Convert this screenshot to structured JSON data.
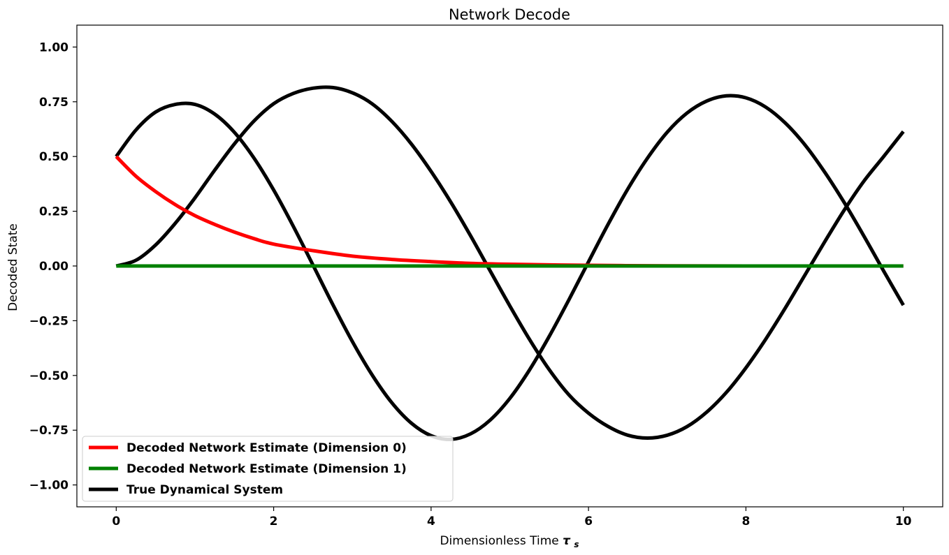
{
  "chart_data": {
    "type": "line",
    "title": "Network Decode",
    "xlabel": "Dimensionless Time",
    "xlabel_symbol": "τ",
    "xlabel_subscript": "s",
    "ylabel": "Decoded State",
    "xlim": [
      -0.5,
      10.5
    ],
    "ylim": [
      -1.1,
      1.1
    ],
    "xticks": [
      0,
      2,
      4,
      6,
      8,
      10
    ],
    "xtick_labels": [
      "0",
      "2",
      "4",
      "6",
      "8",
      "10"
    ],
    "yticks": [
      -1.0,
      -0.75,
      -0.5,
      -0.25,
      0.0,
      0.25,
      0.5,
      0.75,
      1.0
    ],
    "ytick_labels": [
      "−1.00",
      "−0.75",
      "−0.50",
      "−0.25",
      "0.00",
      "0.25",
      "0.50",
      "0.75",
      "1.00"
    ],
    "grid": false,
    "legend_position": "lower-left",
    "legend": [
      {
        "label": "Decoded Network Estimate (Dimension 0)",
        "color": "#ff0000"
      },
      {
        "label": "Decoded Network Estimate (Dimension 1)",
        "color": "#008000"
      },
      {
        "label": "True Dynamical System",
        "color": "#000000"
      }
    ],
    "series": [
      {
        "name": "Decoded Network Estimate (Dimension 0)",
        "color": "#ff0000",
        "x": [
          0,
          0.25,
          0.5,
          0.75,
          1.0,
          1.25,
          1.5,
          1.75,
          2.0,
          2.5,
          3.0,
          3.5,
          4.0,
          4.5,
          5.0,
          6.0,
          7.0,
          8.0,
          9.0,
          10.0
        ],
        "y": [
          0.5,
          0.41,
          0.34,
          0.28,
          0.23,
          0.19,
          0.155,
          0.125,
          0.1,
          0.07,
          0.045,
          0.03,
          0.02,
          0.012,
          0.008,
          0.003,
          0.001,
          0.0,
          0.0,
          0.0
        ]
      },
      {
        "name": "Decoded Network Estimate (Dimension 1)",
        "color": "#008000",
        "x": [
          0,
          10
        ],
        "y": [
          0.0,
          0.0
        ]
      },
      {
        "name": "True Dynamical System",
        "color": "#000000",
        "x": [
          0,
          0.25,
          0.5,
          0.75,
          1.0,
          1.25,
          1.5,
          1.75,
          2.0,
          2.25,
          2.5,
          2.75,
          3.0,
          3.25,
          3.5,
          3.75,
          4.0,
          4.25,
          4.5,
          4.75,
          5.0,
          5.25,
          5.5,
          5.75,
          6.0,
          6.25,
          6.5,
          6.75,
          7.0,
          7.25,
          7.5,
          7.75,
          8.0,
          8.25,
          8.5,
          8.75,
          9.0,
          9.25,
          9.5,
          9.75,
          10.0
        ],
        "y": [
          0.5,
          0.621,
          0.703,
          0.738,
          0.738,
          0.694,
          0.611,
          0.493,
          0.347,
          0.181,
          0.004,
          -0.175,
          -0.345,
          -0.497,
          -0.624,
          -0.718,
          -0.775,
          -0.792,
          -0.767,
          -0.704,
          -0.605,
          -0.475,
          -0.322,
          -0.155,
          0.019,
          0.191,
          0.352,
          0.493,
          0.611,
          0.698,
          0.753,
          0.777,
          0.768,
          0.726,
          0.653,
          0.553,
          0.429,
          0.289,
          0.136,
          -0.023,
          -0.179
        ]
      },
      {
        "name": "True Dynamical System",
        "color": "#000000",
        "x": [
          0,
          0.25,
          0.5,
          0.75,
          1.0,
          1.25,
          1.5,
          1.75,
          2.0,
          2.25,
          2.5,
          2.75,
          3.0,
          3.25,
          3.5,
          3.75,
          4.0,
          4.25,
          4.5,
          4.75,
          5.0,
          5.25,
          5.5,
          5.75,
          6.0,
          6.25,
          6.5,
          6.75,
          7.0,
          7.25,
          7.5,
          7.75,
          8.0,
          8.25,
          8.5,
          8.75,
          9.0,
          9.25,
          9.5,
          9.75,
          10.0
        ],
        "y": [
          0.0,
          0.026,
          0.096,
          0.195,
          0.311,
          0.437,
          0.557,
          0.662,
          0.741,
          0.788,
          0.812,
          0.815,
          0.791,
          0.741,
          0.661,
          0.557,
          0.432,
          0.292,
          0.139,
          -0.022,
          -0.182,
          -0.335,
          -0.473,
          -0.588,
          -0.672,
          -0.733,
          -0.773,
          -0.786,
          -0.773,
          -0.734,
          -0.668,
          -0.578,
          -0.465,
          -0.335,
          -0.192,
          -0.041,
          0.11,
          0.256,
          0.388,
          0.5,
          0.614
        ]
      }
    ]
  }
}
